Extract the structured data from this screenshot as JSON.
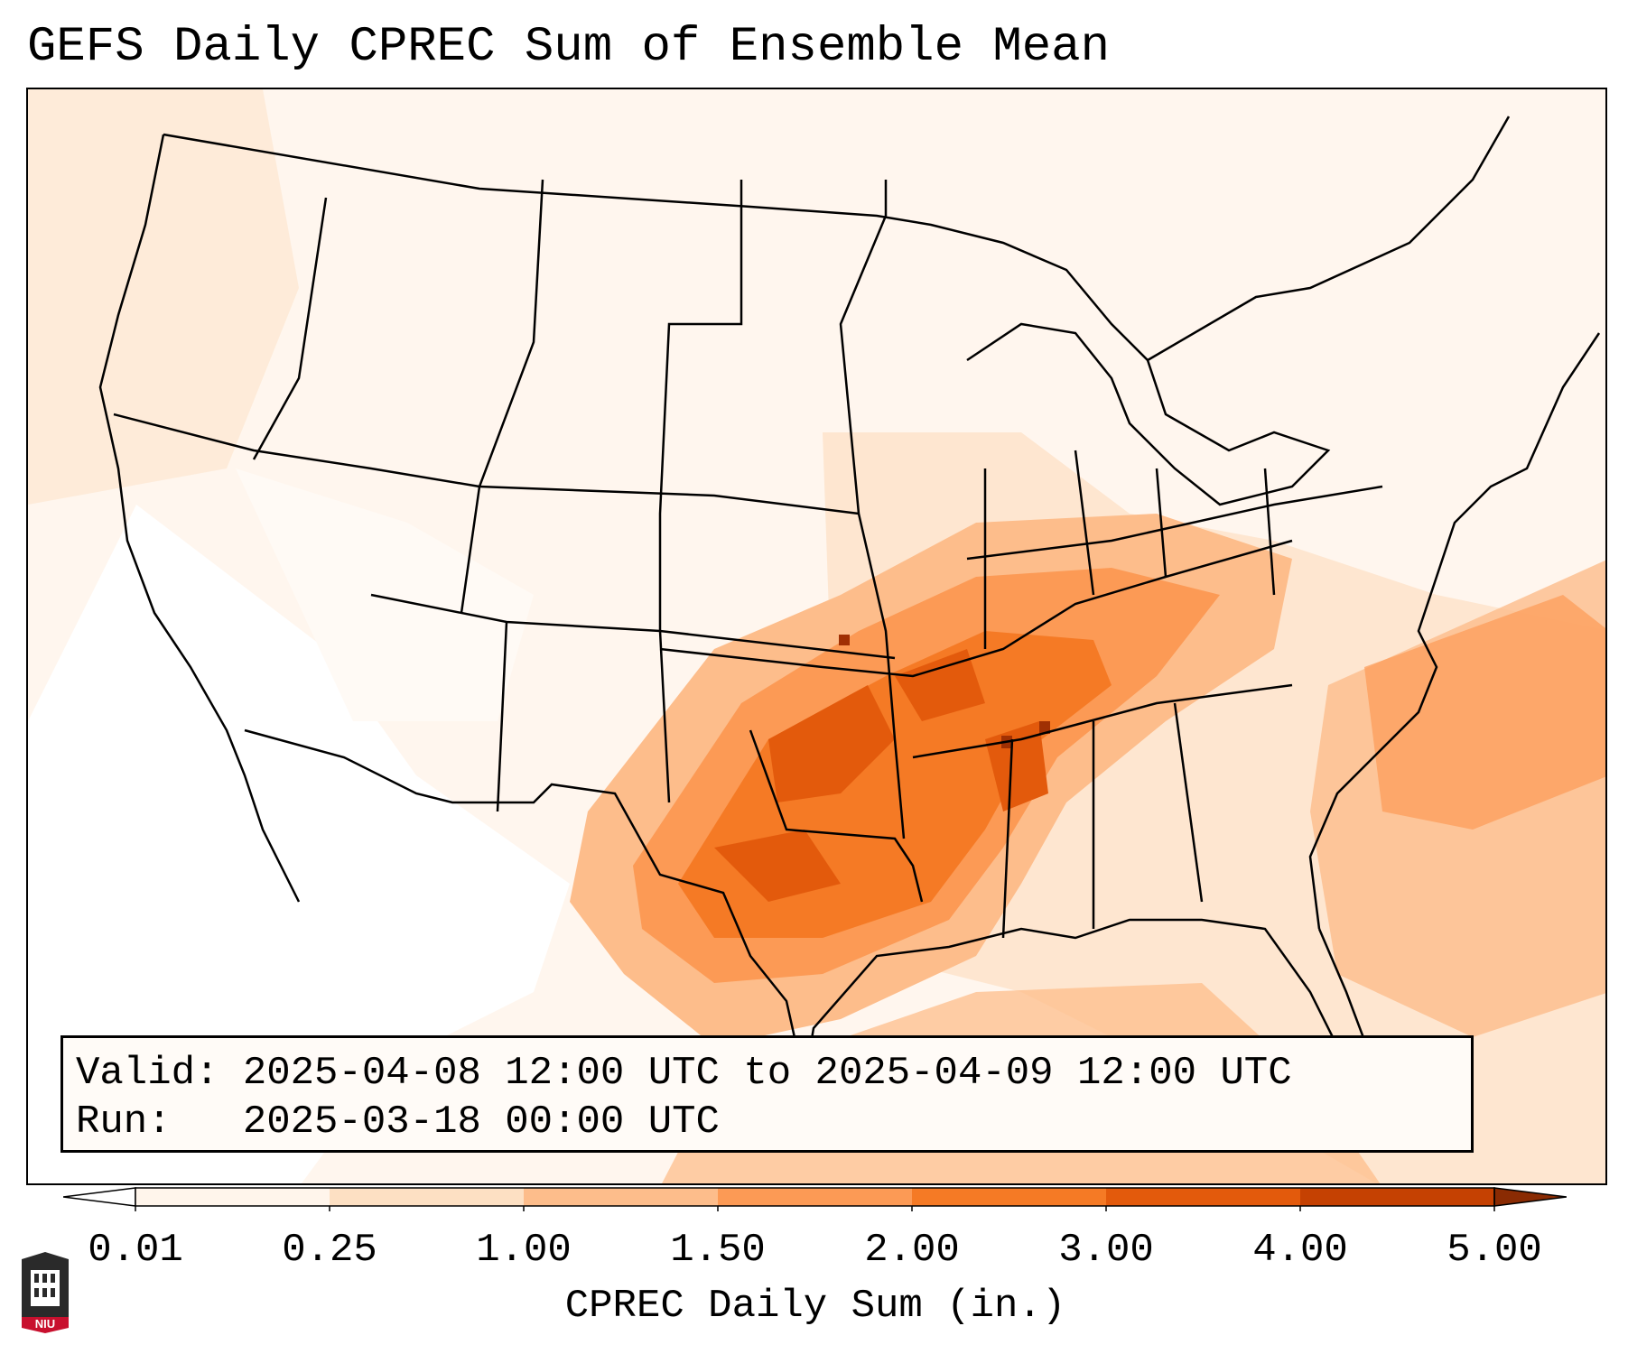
{
  "title": "GEFS Daily CPREC Sum of Ensemble Mean",
  "info": {
    "valid_line": "Valid: 2025-04-08 12:00 UTC to 2025-04-09 12:00 UTC",
    "run_line": "Run:   2025-03-18 00:00 UTC"
  },
  "colorbar": {
    "ticks": [
      "0.01",
      "0.25",
      "1.00",
      "1.50",
      "2.00",
      "3.00",
      "4.00",
      "5.00"
    ],
    "label": "CPREC Daily Sum (in.)",
    "colors": [
      "#fff5eb",
      "#fde0c3",
      "#fdbd8b",
      "#fc9a55",
      "#f57a25",
      "#e35a0c",
      "#c54102",
      "#a03003"
    ],
    "under_color": "#ffffff",
    "over_color": "#8a2b03"
  },
  "logo": {
    "text": "NIU"
  },
  "map": {
    "projection": "Lambert conformal, CONUS",
    "background_color": "#fff6ee",
    "boundary_color": "#000000",
    "max_region": "Southern Plains to Tennessee Valley",
    "regions": [
      {
        "name": "Central Plains to Ohio Valley",
        "category": "1.50"
      },
      {
        "name": "Southern Plains to Mid-South",
        "category": "2.00"
      },
      {
        "name": "Oklahoma / Arkansas / Mississippi cores",
        "category": "3.00"
      },
      {
        "name": "Western Atlantic offshore band",
        "category": "1.00"
      },
      {
        "name": "Great Basin / Desert Southwest",
        "category": "0.01"
      }
    ]
  }
}
